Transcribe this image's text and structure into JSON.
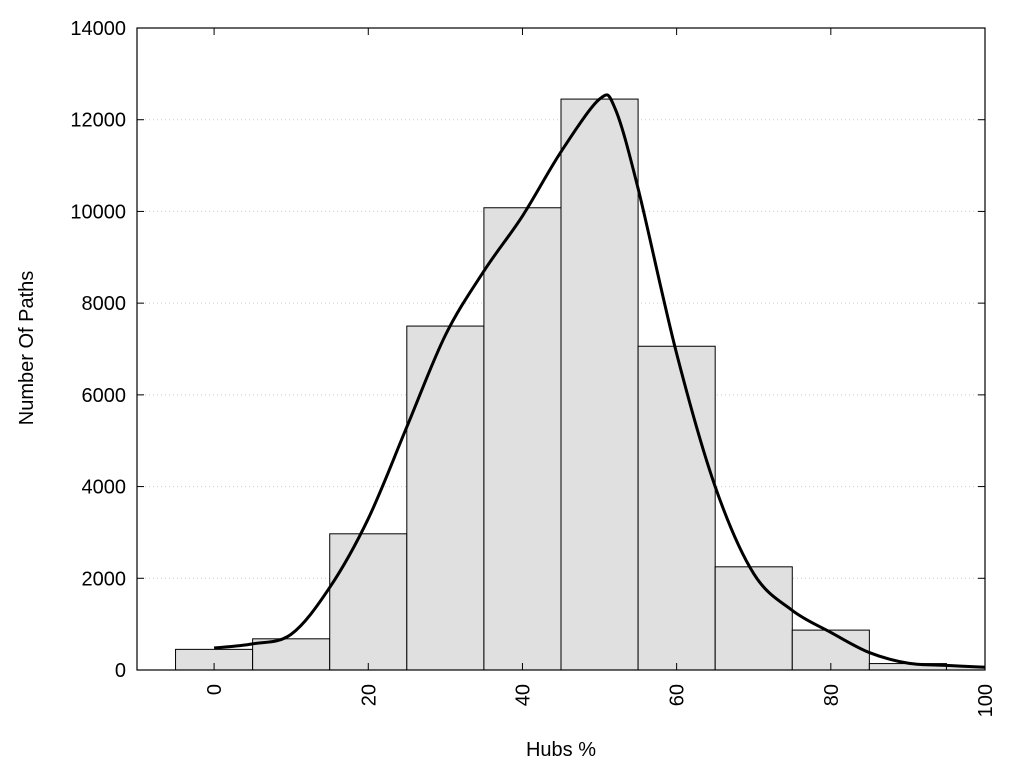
{
  "chart_data": {
    "type": "bar",
    "title": "",
    "xlabel": "Hubs %",
    "ylabel": "Number Of Paths",
    "xlim": [
      -10,
      100
    ],
    "ylim": [
      0,
      14000
    ],
    "x_ticks": [
      0,
      20,
      40,
      60,
      80,
      100
    ],
    "x_tick_labels": [
      "0",
      "20",
      "40",
      "60",
      "80",
      "100"
    ],
    "y_ticks": [
      0,
      2000,
      4000,
      6000,
      8000,
      10000,
      12000,
      14000
    ],
    "y_tick_labels": [
      "0",
      "2000",
      "4000",
      "6000",
      "8000",
      "10000",
      "12000",
      "14000"
    ],
    "bin_width": 10,
    "bins": [
      {
        "center": 0,
        "value": 450
      },
      {
        "center": 10,
        "value": 680
      },
      {
        "center": 20,
        "value": 2970
      },
      {
        "center": 30,
        "value": 7500
      },
      {
        "center": 40,
        "value": 10080
      },
      {
        "center": 50,
        "value": 12450
      },
      {
        "center": 60,
        "value": 7060
      },
      {
        "center": 70,
        "value": 2250
      },
      {
        "center": 80,
        "value": 870
      },
      {
        "center": 90,
        "value": 140
      },
      {
        "center": 100,
        "value": 80
      }
    ],
    "curve": {
      "x": [
        0,
        5,
        10,
        15,
        20,
        25,
        30,
        35,
        40,
        45,
        50,
        52,
        55,
        60,
        65,
        70,
        75,
        80,
        85,
        90,
        95,
        100
      ],
      "y": [
        480,
        570,
        780,
        1800,
        3300,
        5300,
        7300,
        8700,
        9900,
        11300,
        12450,
        12250,
        10500,
        6900,
        4000,
        2100,
        1300,
        820,
        380,
        150,
        100,
        60
      ]
    },
    "grid": {
      "y": true,
      "x": false
    },
    "legend": "none",
    "colors": {
      "bar_fill": "#e0e0e0",
      "bar_stroke": "#000000",
      "curve": "#000000",
      "grid": "#cccccc"
    }
  }
}
